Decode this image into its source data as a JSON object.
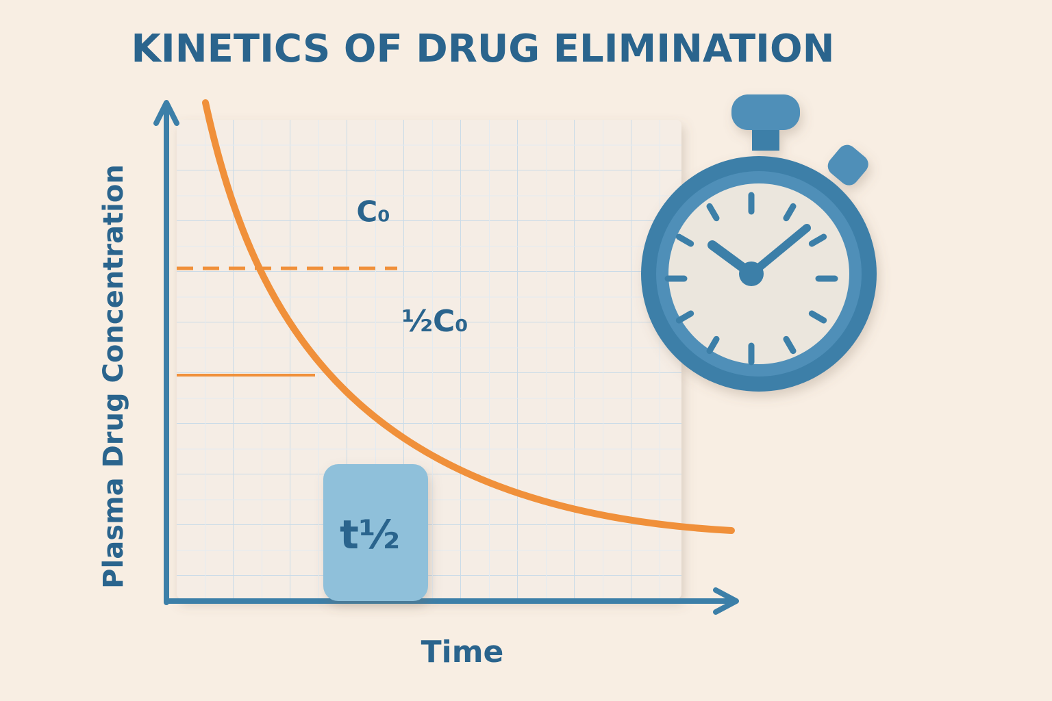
{
  "header": {
    "title": "KINETICS OF DRUG ELIMINATION"
  },
  "axes": {
    "y_label": "Plasma Drug Concentration",
    "x_label": "Time"
  },
  "annotations": {
    "initial": "C₀",
    "half": "½C₀",
    "half_life": "t½"
  }
}
